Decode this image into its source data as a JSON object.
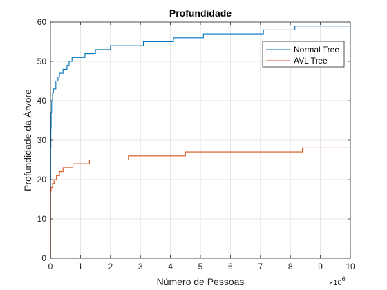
{
  "chart_data": {
    "type": "line",
    "title": "Profundidade",
    "xlabel": "Número de Pessoas",
    "ylabel": "Profundidade da Árvore",
    "xlim": [
      0,
      10
    ],
    "ylim": [
      0,
      60
    ],
    "x_exponent_base": "×10",
    "x_exponent_power": "6",
    "x_ticks": [
      0,
      1,
      2,
      3,
      4,
      5,
      6,
      7,
      8,
      9,
      10
    ],
    "x_tick_labels": [
      "0",
      "1",
      "2",
      "3",
      "4",
      "5",
      "6",
      "7",
      "8",
      "9",
      "10"
    ],
    "y_ticks": [
      0,
      10,
      20,
      30,
      40,
      50,
      60
    ],
    "y_tick_labels": [
      "0",
      "10",
      "20",
      "30",
      "40",
      "50",
      "60"
    ],
    "grid": true,
    "legend_position": "top-right",
    "series": [
      {
        "name": "Normal Tree",
        "color": "#0072BD",
        "steps": [
          [
            0,
            0
          ],
          [
            0.003,
            20
          ],
          [
            0.008,
            28
          ],
          [
            0.015,
            33
          ],
          [
            0.025,
            37
          ],
          [
            0.04,
            40
          ],
          [
            0.07,
            42
          ],
          [
            0.1,
            43
          ],
          [
            0.18,
            45
          ],
          [
            0.25,
            46
          ],
          [
            0.3,
            47
          ],
          [
            0.42,
            48
          ],
          [
            0.55,
            49
          ],
          [
            0.62,
            50
          ],
          [
            0.72,
            51
          ],
          [
            1.15,
            52
          ],
          [
            1.5,
            53
          ],
          [
            2.0,
            54
          ],
          [
            2.65,
            54
          ],
          [
            3.1,
            55
          ],
          [
            3.6,
            55
          ],
          [
            4.1,
            56
          ],
          [
            4.6,
            56
          ],
          [
            5.1,
            57
          ],
          [
            6.6,
            57
          ],
          [
            7.1,
            58
          ],
          [
            7.7,
            58
          ],
          [
            8.15,
            59
          ],
          [
            10,
            59
          ]
        ]
      },
      {
        "name": "AVL Tree",
        "color": "#D95319",
        "steps": [
          [
            0,
            0
          ],
          [
            0.004,
            17
          ],
          [
            0.02,
            18
          ],
          [
            0.07,
            19
          ],
          [
            0.12,
            20
          ],
          [
            0.2,
            21
          ],
          [
            0.3,
            22
          ],
          [
            0.42,
            23
          ],
          [
            0.75,
            24
          ],
          [
            1.3,
            25
          ],
          [
            2.6,
            26
          ],
          [
            4.5,
            27
          ],
          [
            8.4,
            28
          ],
          [
            10,
            28
          ]
        ]
      }
    ]
  }
}
